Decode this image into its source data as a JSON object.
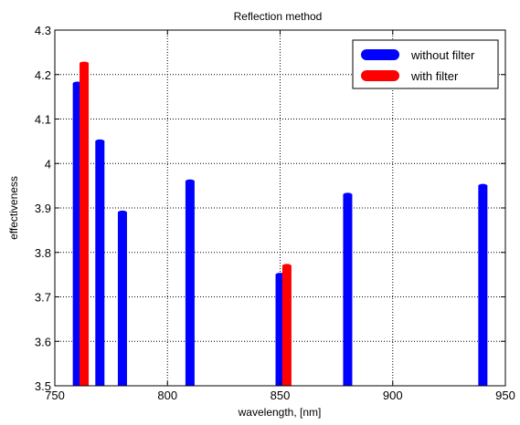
{
  "chart_data": {
    "type": "bar",
    "title": "Reflection method",
    "xlabel": "wavelength, [nm]",
    "ylabel": "effectiveness",
    "xlim": [
      750,
      950
    ],
    "ylim": [
      3.5,
      4.3
    ],
    "xticks": [
      750,
      800,
      850,
      900,
      950
    ],
    "yticks": [
      3.5,
      3.6,
      3.7,
      3.8,
      3.9,
      4.0,
      4.1,
      4.2,
      4.3
    ],
    "xtick_labels": [
      "750",
      "800",
      "850",
      "900",
      "950"
    ],
    "ytick_labels": [
      "3.5",
      "3.6",
      "3.7",
      "3.8",
      "3.9",
      "4",
      "4.1",
      "4.2",
      "4.3"
    ],
    "grid": true,
    "legend_position": "top-right",
    "series": [
      {
        "name": "without filter",
        "color": "#0000ff",
        "x": [
          760,
          770,
          780,
          810,
          850,
          880,
          940
        ],
        "values": [
          4.18,
          4.05,
          3.89,
          3.96,
          3.75,
          3.93,
          3.95
        ]
      },
      {
        "name": "with filter",
        "color": "#ff0000",
        "x": [
          763,
          853
        ],
        "values": [
          4.225,
          3.77
        ]
      }
    ]
  }
}
